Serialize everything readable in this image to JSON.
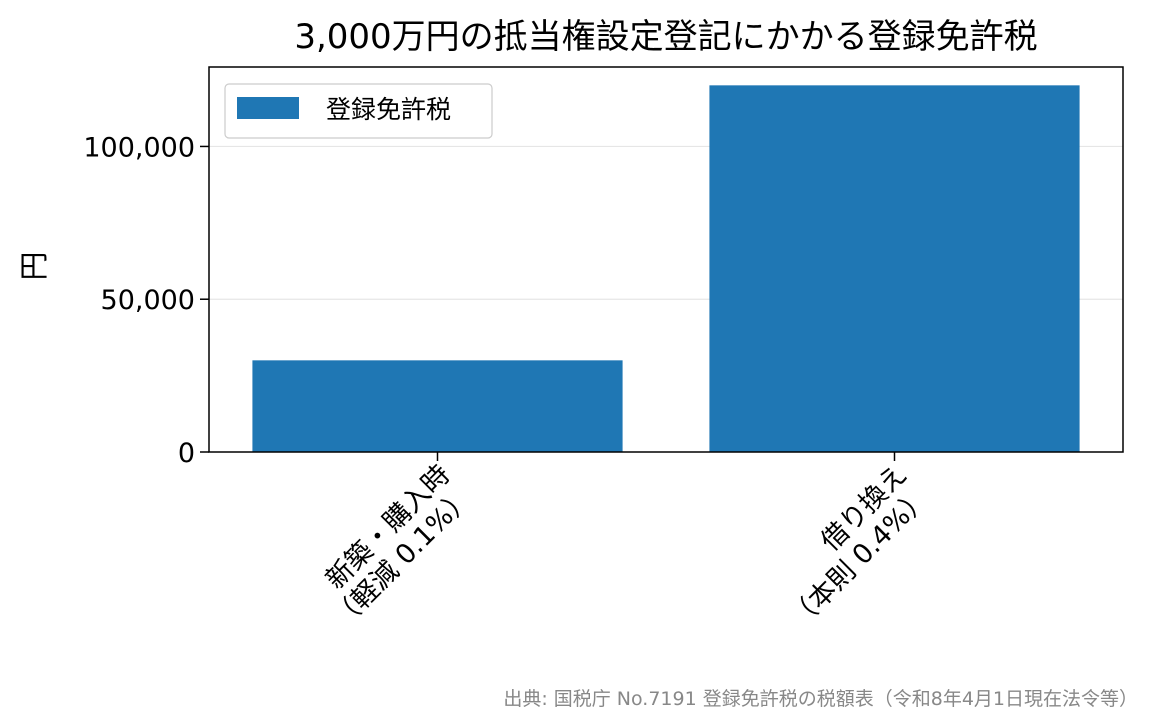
{
  "chart_data": {
    "type": "bar",
    "title": "3,000万円の抵当権設定登記にかかる登録免許税",
    "xlabel": "",
    "ylabel": "円",
    "categories": [
      [
        "新築・購入時",
        "（軽減 0.1%）"
      ],
      [
        "借り換え",
        "（本則 0.4%）"
      ]
    ],
    "series": [
      {
        "name": "登録免許税",
        "values": [
          30000,
          120000
        ],
        "color": "#1f77b4"
      }
    ],
    "ylim": [
      0,
      126000
    ],
    "yticks": [
      0,
      50000,
      100000
    ],
    "ytick_labels": [
      "0",
      "50,000",
      "100,000"
    ],
    "grid": "y",
    "legend_position": "top-left",
    "source": "出典: 国税庁 No.7191 登録免許税の税額表（令和8年4月1日現在法令等）"
  }
}
